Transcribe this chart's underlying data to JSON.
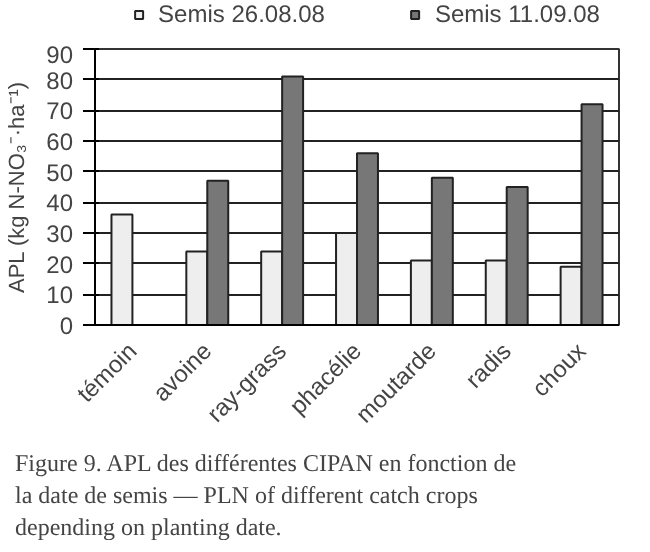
{
  "chart_data": {
    "type": "bar",
    "ylabel": "APL (kg N-NO₃⁻·ha⁻¹)",
    "categories": [
      "témoin",
      "avoine",
      "ray-grass",
      "phacélie",
      "moutarde",
      "radis",
      "choux"
    ],
    "series": [
      {
        "name": "Semis 26.08.08",
        "color": "#eeeeee",
        "values": [
          36,
          24,
          24,
          30,
          21,
          21,
          19
        ]
      },
      {
        "name": "Semis 11.09.08",
        "color": "#777777",
        "values": [
          null,
          47,
          81,
          56,
          48,
          45,
          72
        ]
      }
    ],
    "ylim": [
      0,
      90
    ],
    "yticks": [
      0,
      10,
      20,
      30,
      40,
      50,
      60,
      70,
      80,
      90
    ],
    "grid": "y",
    "legend": "top",
    "annotations": [
      "Figure 9. APL des différentes CIPAN en fonction de la date de semis — PLN of different catch crops depending on planting date."
    ]
  }
}
